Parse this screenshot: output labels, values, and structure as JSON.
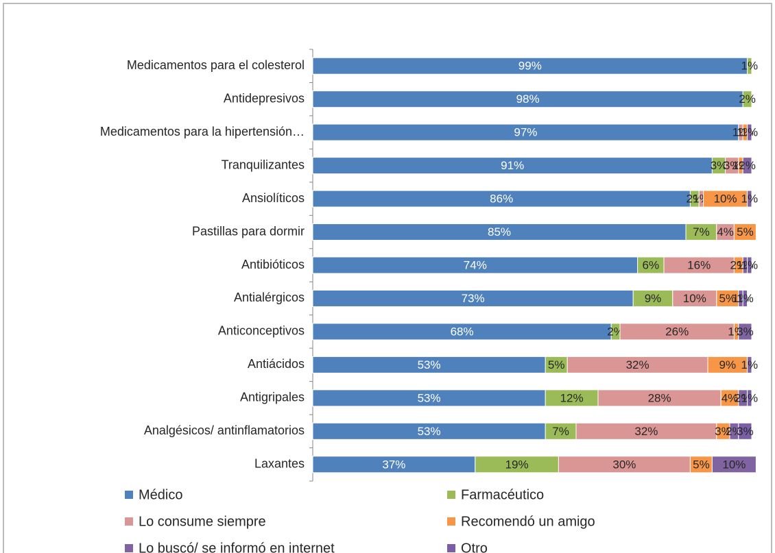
{
  "chart_data": {
    "type": "stacked_bar_h",
    "categories": [
      "Medicamentos para el colesterol",
      "Antidepresivos",
      "Medicamentos para la hipertensión…",
      "Tranquilizantes",
      "Ansiolíticos",
      "Pastillas para dormir",
      "Antibióticos",
      "Antialérgicos",
      "Anticonceptivos",
      "Antiácidos",
      "Antigripales",
      "Analgésicos/ antinflamatorios",
      "Laxantes"
    ],
    "xlim": [
      0,
      100
    ],
    "legend": "bottom",
    "series": [
      {
        "name": "Médico",
        "color": "#4f81bd",
        "values": [
          99,
          98,
          97,
          91,
          86,
          85,
          74,
          73,
          68,
          53,
          53,
          53,
          37
        ],
        "value_labels": [
          "99%",
          "98%",
          "97%",
          "91%",
          "86%",
          "85%",
          "74%",
          "73%",
          "68%",
          "53%",
          "53%",
          "53%",
          "37%"
        ]
      },
      {
        "name": "Farmacéutico",
        "color": "#9bbb59",
        "values": [
          1,
          2,
          0,
          3,
          2,
          7,
          6,
          9,
          2,
          5,
          12,
          7,
          19
        ],
        "value_labels": [
          "1%",
          "2%",
          null,
          "3%",
          "2%",
          "7%",
          "6%",
          "9%",
          "2%",
          "5%",
          "12%",
          "7%",
          "19%"
        ]
      },
      {
        "name": "Lo consume siempre",
        "color": "#da9694",
        "values": [
          0,
          0,
          1,
          3,
          1,
          4,
          16,
          10,
          26,
          32,
          28,
          32,
          30
        ],
        "value_labels": [
          null,
          null,
          "1%",
          "3%",
          "1%",
          "4%",
          "16%",
          "10%",
          "26%",
          "32%",
          "28%",
          "32%",
          "30%"
        ]
      },
      {
        "name": "Recomendó un amigo",
        "color": "#f79646",
        "values": [
          0,
          0,
          1,
          1,
          10,
          5,
          2,
          5,
          1,
          9,
          4,
          3,
          5
        ],
        "value_labels": [
          null,
          null,
          "1%",
          "1%",
          "10%",
          "5%",
          "2%",
          "5%",
          "1%",
          "9%",
          "4%",
          "3%",
          "5%"
        ]
      },
      {
        "name": "Lo buscó/ se informó en internet",
        "color": "#8064a2",
        "values": [
          0,
          0,
          1,
          2,
          1,
          0,
          1,
          1,
          3,
          1,
          2,
          2,
          10
        ],
        "value_labels": [
          null,
          null,
          "1%",
          "2%",
          "1%",
          null,
          "1%",
          "1%",
          "3%",
          "1%",
          "2%",
          "2%",
          "10%"
        ]
      },
      {
        "name": "Otro",
        "color": "#7b5fa6",
        "values": [
          0,
          0,
          0,
          0,
          0,
          0,
          1,
          1,
          0,
          0,
          1,
          3,
          0
        ],
        "value_labels": [
          null,
          null,
          null,
          null,
          null,
          null,
          "1%",
          "1%",
          null,
          null,
          "1%",
          "3%",
          null
        ]
      }
    ]
  }
}
